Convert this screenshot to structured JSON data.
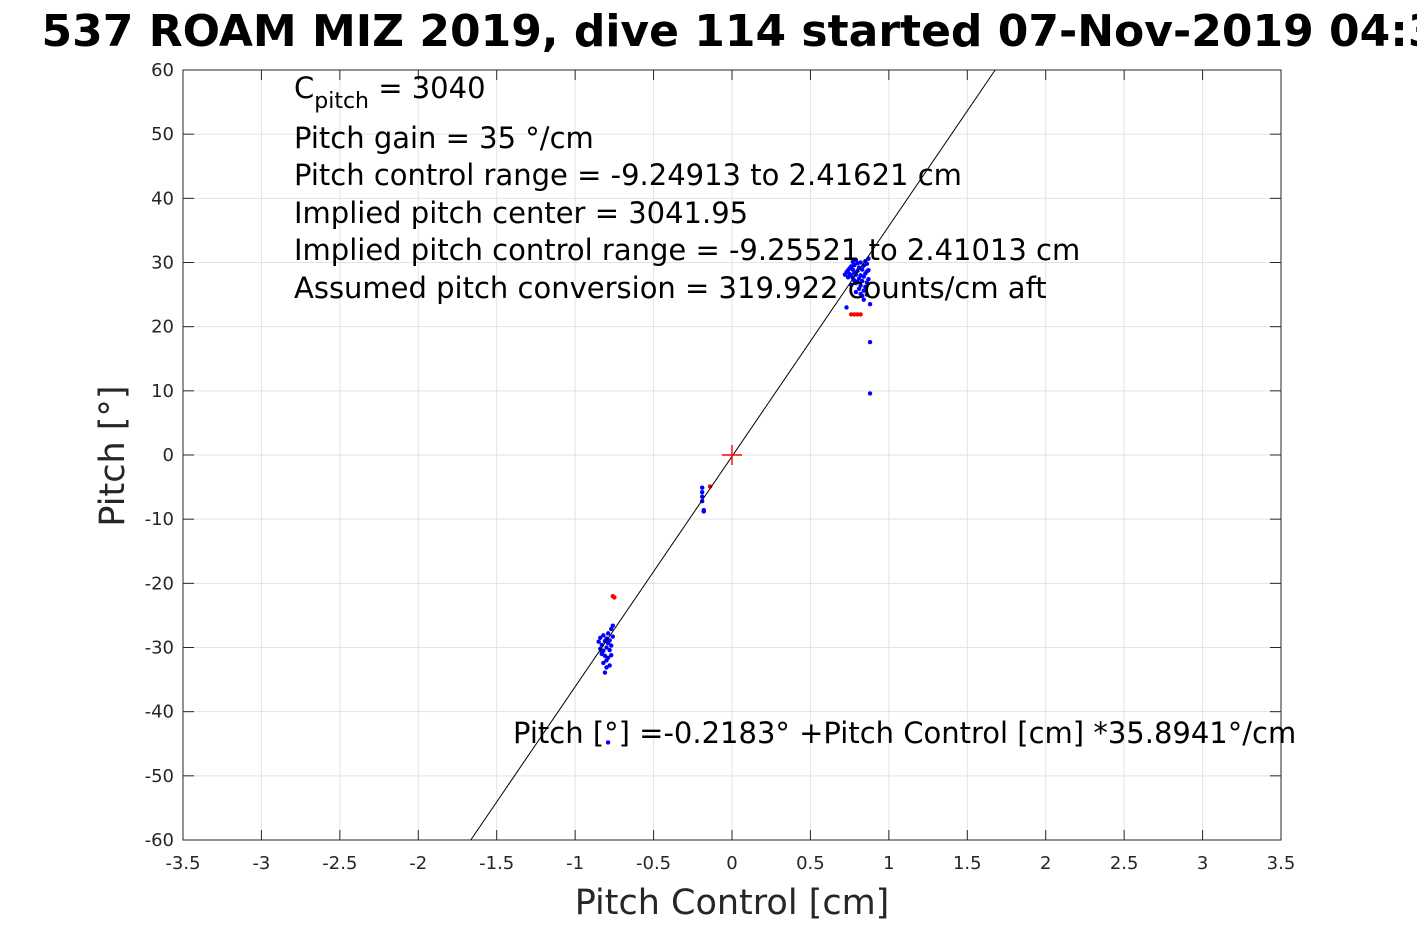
{
  "chart_data": {
    "type": "scatter",
    "title": "537 ROAM MIZ 2019, dive 114 started 07-Nov-2019 04:3",
    "xlabel": "Pitch Control [cm]",
    "ylabel": "Pitch [°]",
    "xlim": [
      -3.5,
      3.5
    ],
    "ylim": [
      -60,
      60
    ],
    "xticks": [
      -3.5,
      -3,
      -2.5,
      -2,
      -1.5,
      -1,
      -0.5,
      0,
      0.5,
      1,
      1.5,
      2,
      2.5,
      3,
      3.5
    ],
    "yticks": [
      -60,
      -50,
      -40,
      -30,
      -20,
      -10,
      0,
      10,
      20,
      30,
      40,
      50,
      60
    ],
    "xtick_labels": [
      "-3.5",
      "-3",
      "-2.5",
      "-2",
      "-1.5",
      "-1",
      "-0.5",
      "0",
      "0.5",
      "1",
      "1.5",
      "2",
      "2.5",
      "3",
      "3.5"
    ],
    "ytick_labels": [
      "-60",
      "-50",
      "-40",
      "-30",
      "-20",
      "-10",
      "0",
      "10",
      "20",
      "30",
      "40",
      "50",
      "60"
    ],
    "grid": true,
    "fit_line": {
      "intercept": -0.2183,
      "slope": 35.8941,
      "color": "#000000"
    },
    "center_marker": {
      "x": 0,
      "y": 0,
      "color": "#ff0000",
      "marker": "plus"
    },
    "series": [
      {
        "color": "#0000ff",
        "points": [
          [
            0.73,
            28.5
          ],
          [
            0.74,
            28.8
          ],
          [
            0.75,
            28.2
          ],
          [
            0.75,
            29.1
          ],
          [
            0.76,
            28.0
          ],
          [
            0.76,
            29.4
          ],
          [
            0.77,
            27.6
          ],
          [
            0.77,
            28.9
          ],
          [
            0.77,
            30.1
          ],
          [
            0.78,
            27.2
          ],
          [
            0.78,
            28.4
          ],
          [
            0.78,
            29.6
          ],
          [
            0.79,
            26.8
          ],
          [
            0.79,
            28.1
          ],
          [
            0.79,
            30.4
          ],
          [
            0.8,
            27.0
          ],
          [
            0.8,
            28.7
          ],
          [
            0.8,
            29.9
          ],
          [
            0.81,
            25.9
          ],
          [
            0.81,
            27.5
          ],
          [
            0.81,
            29.2
          ],
          [
            0.82,
            26.4
          ],
          [
            0.82,
            28.0
          ],
          [
            0.82,
            30.0
          ],
          [
            0.83,
            24.8
          ],
          [
            0.83,
            27.1
          ],
          [
            0.83,
            28.9
          ],
          [
            0.84,
            25.6
          ],
          [
            0.84,
            27.8
          ],
          [
            0.84,
            29.5
          ],
          [
            0.85,
            26.2
          ],
          [
            0.85,
            28.3
          ],
          [
            0.85,
            30.2
          ],
          [
            0.86,
            26.9
          ],
          [
            0.86,
            28.6
          ],
          [
            0.86,
            29.8
          ],
          [
            0.87,
            27.4
          ],
          [
            0.87,
            28.8
          ],
          [
            0.87,
            30.6
          ],
          [
            0.72,
            28.1
          ],
          [
            0.74,
            27.7
          ],
          [
            0.76,
            26.5
          ],
          [
            0.79,
            25.4
          ],
          [
            0.82,
            25.1
          ],
          [
            0.84,
            24.2
          ],
          [
            0.86,
            25.0
          ],
          [
            0.88,
            23.5
          ],
          [
            0.73,
            23.0
          ],
          [
            0.88,
            17.6
          ],
          [
            0.88,
            9.6
          ],
          [
            -0.85,
            -29.1
          ],
          [
            -0.84,
            -28.5
          ],
          [
            -0.84,
            -30.2
          ],
          [
            -0.83,
            -29.6
          ],
          [
            -0.83,
            -31.0
          ],
          [
            -0.82,
            -28.1
          ],
          [
            -0.82,
            -30.5
          ],
          [
            -0.82,
            -32.4
          ],
          [
            -0.81,
            -29.0
          ],
          [
            -0.81,
            -31.3
          ],
          [
            -0.81,
            -33.9
          ],
          [
            -0.8,
            -28.6
          ],
          [
            -0.8,
            -30.0
          ],
          [
            -0.8,
            -32.0
          ],
          [
            -0.79,
            -29.3
          ],
          [
            -0.79,
            -31.6
          ],
          [
            -0.79,
            -27.8
          ],
          [
            -0.78,
            -30.4
          ],
          [
            -0.78,
            -32.8
          ],
          [
            -0.78,
            -28.9
          ],
          [
            -0.77,
            -29.7
          ],
          [
            -0.77,
            -27.1
          ],
          [
            -0.77,
            -31.2
          ],
          [
            -0.76,
            -28.3
          ],
          [
            -0.76,
            -26.6
          ],
          [
            -0.83,
            -30.8
          ],
          [
            -0.8,
            -33.1
          ],
          [
            -0.79,
            -44.8
          ],
          [
            -0.19,
            -5.1
          ],
          [
            -0.19,
            -5.8
          ],
          [
            -0.19,
            -6.5
          ],
          [
            -0.19,
            -7.2
          ],
          [
            -0.18,
            -8.6
          ],
          [
            -0.18,
            -8.8
          ]
        ]
      },
      {
        "color": "#ff0000",
        "points": [
          [
            0.76,
            21.9
          ],
          [
            0.78,
            21.9
          ],
          [
            0.8,
            21.9
          ],
          [
            0.82,
            21.9
          ],
          [
            -0.76,
            -22.0
          ],
          [
            -0.75,
            -22.2
          ],
          [
            -0.14,
            -4.9
          ]
        ]
      }
    ],
    "annotations": [
      {
        "base": "C",
        "sub": "pitch",
        "text": " = 3040"
      },
      {
        "text": "Pitch gain = 35 °/cm"
      },
      {
        "text": "Pitch control range = -9.24913 to 2.41621 cm"
      },
      {
        "text": "Implied pitch center = 3041.95"
      },
      {
        "text": "Implied pitch control range = -9.25521 to 2.41013 cm"
      },
      {
        "text": "Assumed pitch conversion = 319.922 counts/cm aft"
      }
    ],
    "fit_label": "Pitch [°] =-0.2183° +Pitch Control [cm] *35.8941°/cm"
  }
}
